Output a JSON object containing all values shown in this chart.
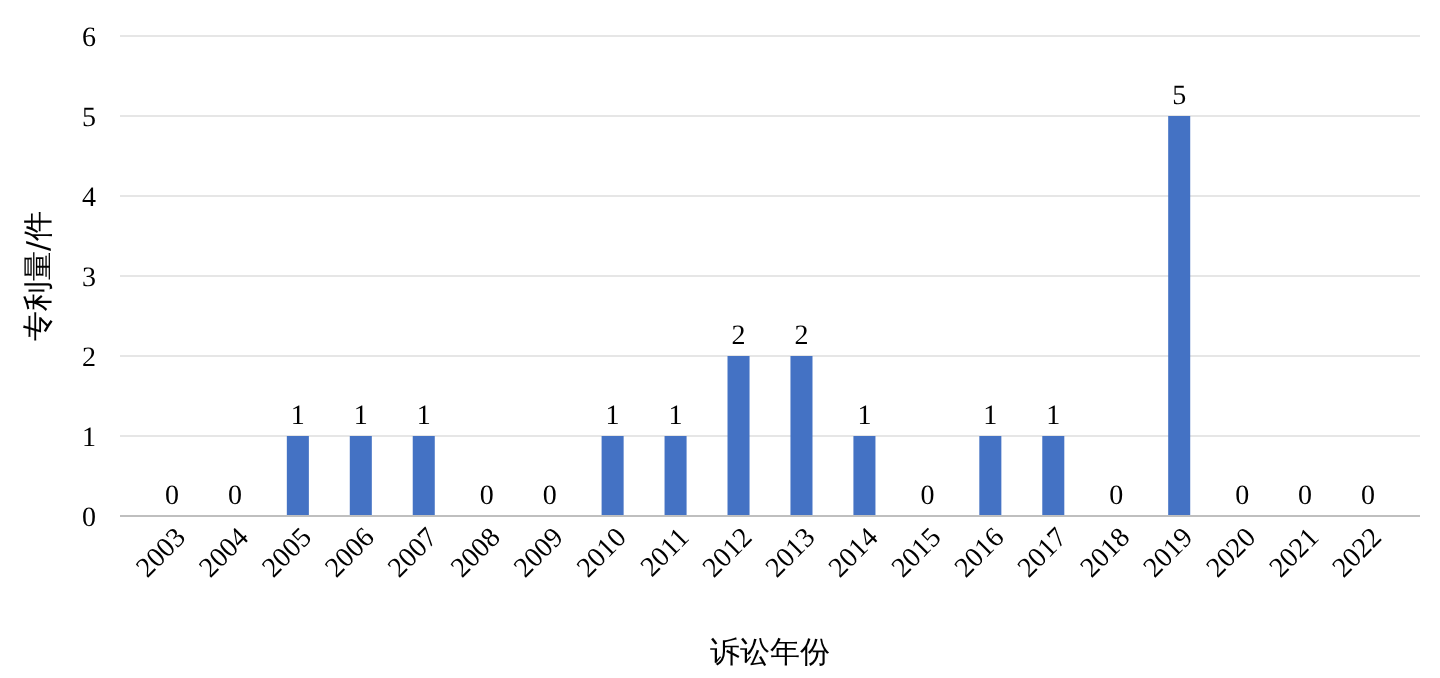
{
  "chart_data": {
    "type": "bar",
    "xlabel": "诉讼年份",
    "ylabel": "专利量/件",
    "categories": [
      "2003",
      "2004",
      "2005",
      "2006",
      "2007",
      "2008",
      "2009",
      "2010",
      "2011",
      "2012",
      "2013",
      "2014",
      "2015",
      "2016",
      "2017",
      "2018",
      "2019",
      "2020",
      "2021",
      "2022"
    ],
    "values": [
      0,
      0,
      1,
      1,
      1,
      0,
      0,
      1,
      1,
      2,
      2,
      1,
      0,
      1,
      1,
      0,
      5,
      0,
      0,
      0
    ],
    "color": "#4472c4",
    "ylim": [
      0,
      6
    ],
    "yticks": [
      0,
      1,
      2,
      3,
      4,
      5,
      6
    ],
    "grid": "y",
    "data_labels": true
  }
}
